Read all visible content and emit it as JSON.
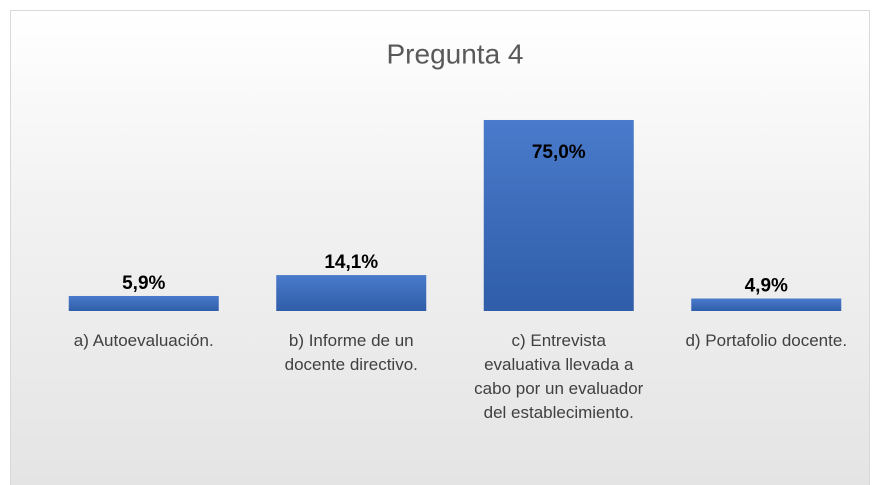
{
  "chart_data": {
    "type": "bar",
    "title": "Pregunta 4",
    "categories": [
      "a) Autoevaluación.",
      "b) Informe de un docente directivo.",
      "c) Entrevista evaluativa llevada a cabo por un evaluador del establecimiento.",
      "d) Portafolio docente."
    ],
    "values": [
      5.9,
      14.1,
      75.0,
      4.9
    ],
    "value_labels": [
      "5,9%",
      "14,1%",
      "75,0%",
      "4,9%"
    ],
    "color": "#4472c4"
  }
}
